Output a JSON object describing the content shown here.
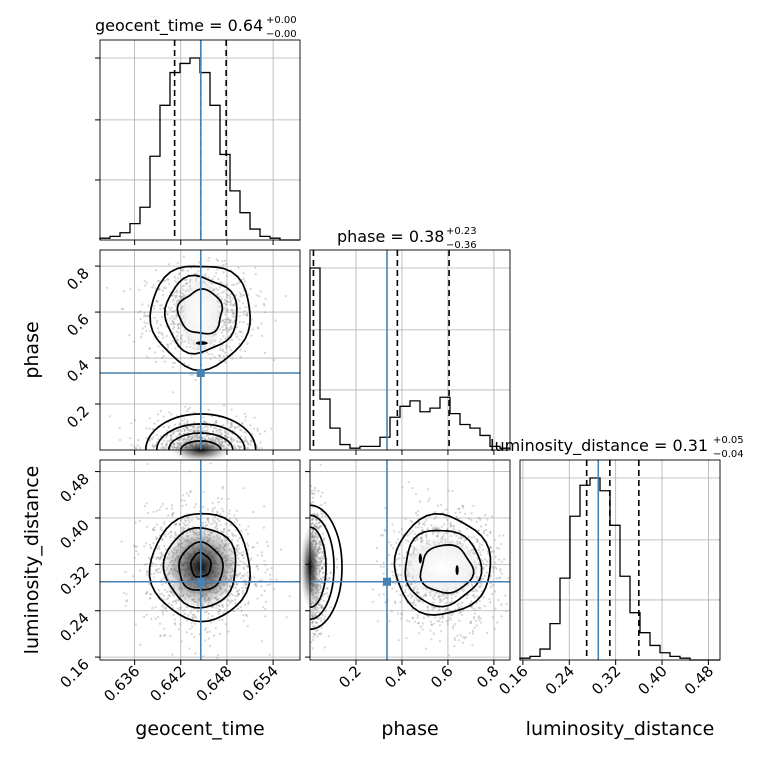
{
  "chart_data": {
    "type": "corner",
    "parameters": [
      "geocent_time",
      "phase",
      "luminosity_distance"
    ],
    "axis_labels": [
      "geocent_time",
      "phase",
      "luminosity_distance"
    ],
    "ranges": {
      "geocent_time": [
        0.6315,
        0.6575
      ],
      "phase": [
        0.0,
        0.87
      ],
      "luminosity_distance": [
        0.155,
        0.5
      ]
    },
    "ticks": {
      "geocent_time": [
        "0.636",
        "0.642",
        "0.648",
        "0.654"
      ],
      "phase": [
        "0.2",
        "0.4",
        "0.6",
        "0.8"
      ],
      "luminosity_distance": [
        "0.16",
        "0.24",
        "0.32",
        "0.40",
        "0.48"
      ]
    },
    "tick_values": {
      "geocent_time": [
        0.636,
        0.642,
        0.648,
        0.654
      ],
      "phase": [
        0.2,
        0.4,
        0.6,
        0.8
      ],
      "luminosity_distance": [
        0.16,
        0.24,
        0.32,
        0.4,
        0.48
      ]
    },
    "truths": {
      "geocent_time": 0.6446,
      "phase": 0.335,
      "luminosity_distance": 0.29
    },
    "titles": [
      {
        "param": "geocent_time",
        "text": "geocent_time = 0.64",
        "plus": "+0.00",
        "minus": "−0.00"
      },
      {
        "param": "phase",
        "text": "phase = 0.38",
        "plus": "+0.23",
        "minus": "−0.36"
      },
      {
        "param": "luminosity_distance",
        "text": "luminosity_distance = 0.31",
        "plus": "+0.05",
        "minus": "−0.04"
      }
    ],
    "quantiles": {
      "geocent_time": [
        0.6412,
        0.6446,
        0.6479
      ],
      "phase": [
        0.015,
        0.38,
        0.605
      ],
      "luminosity_distance": [
        0.27,
        0.31,
        0.36
      ]
    },
    "histograms": {
      "geocent_time": {
        "edges": [
          0.6315,
          0.6328,
          0.6341,
          0.6354,
          0.6367,
          0.638,
          0.6393,
          0.6406,
          0.6419,
          0.6432,
          0.6445,
          0.6458,
          0.6471,
          0.6484,
          0.6497,
          0.651,
          0.6523,
          0.6536,
          0.6549,
          0.6562,
          0.6575
        ],
        "counts": [
          1,
          2,
          4,
          9,
          18,
          46,
          74,
          92,
          97,
          100,
          92,
          74,
          47,
          27,
          15,
          6,
          2,
          1,
          0,
          0
        ]
      },
      "phase": {
        "edges": [
          0.0,
          0.0435,
          0.087,
          0.1305,
          0.174,
          0.2175,
          0.261,
          0.3045,
          0.348,
          0.3915,
          0.435,
          0.4785,
          0.522,
          0.5655,
          0.609,
          0.6525,
          0.696,
          0.7395,
          0.783,
          0.8265,
          0.87
        ],
        "counts": [
          100,
          28,
          12,
          3,
          1,
          2,
          2,
          7,
          18,
          24,
          27,
          21,
          23,
          29,
          20,
          14,
          12,
          8,
          2,
          1
        ]
      },
      "luminosity_distance": {
        "edges": [
          0.155,
          0.17225,
          0.1895,
          0.20675,
          0.224,
          0.24125,
          0.2585,
          0.27575,
          0.293,
          0.31025,
          0.3275,
          0.34475,
          0.362,
          0.37925,
          0.3965,
          0.41375,
          0.431,
          0.44825,
          0.4655,
          0.48275,
          0.5
        ],
        "counts": [
          1,
          2,
          6,
          20,
          45,
          79,
          96,
          100,
          93,
          74,
          46,
          26,
          15,
          8,
          4,
          2,
          1,
          0,
          0,
          0
        ]
      }
    },
    "grid": true
  }
}
